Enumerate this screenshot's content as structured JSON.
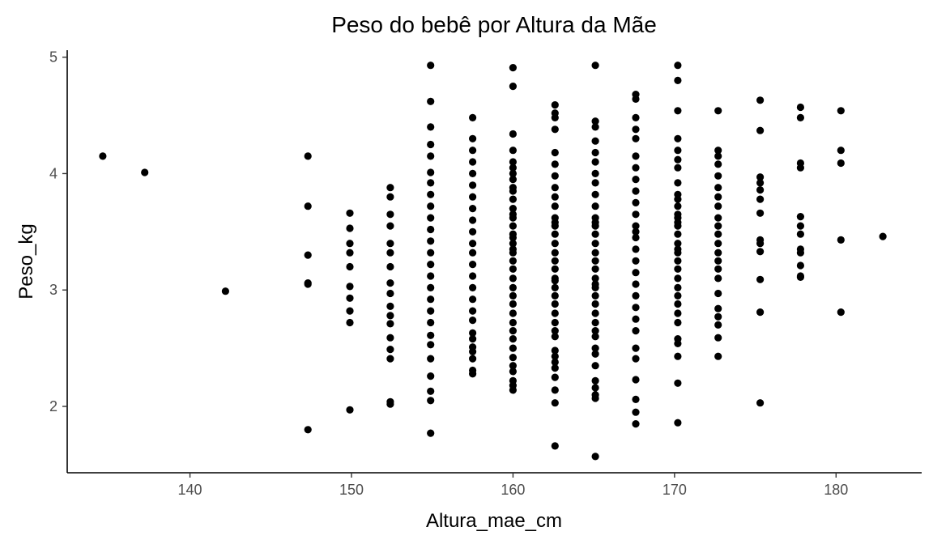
{
  "chart_data": {
    "type": "scatter",
    "title": "Peso do bebê por Altura da Mãe",
    "xlabel": "Altura_mae_cm",
    "ylabel": "Peso_kg",
    "xlim": [
      132.4,
      185.3
    ],
    "ylim": [
      1.43,
      5.06
    ],
    "xticks": [
      140,
      150,
      160,
      170,
      180
    ],
    "yticks": [
      2,
      3,
      4,
      5
    ],
    "grid": false,
    "point_color": "#000000",
    "x": [
      134.6,
      137.2,
      142.2,
      147.3,
      147.3,
      147.3,
      147.3,
      147.3,
      147.3,
      149.9,
      149.9,
      149.9,
      149.9,
      149.9,
      149.9,
      149.9,
      149.9,
      149.9,
      149.9,
      152.4,
      152.4,
      152.4,
      152.4,
      152.4,
      152.4,
      152.4,
      152.4,
      152.4,
      152.4,
      152.4,
      152.4,
      152.4,
      152.4,
      152.4,
      152.4,
      152.4,
      154.9,
      154.9,
      154.9,
      154.9,
      154.9,
      154.9,
      154.9,
      154.9,
      154.9,
      154.9,
      154.9,
      154.9,
      154.9,
      154.9,
      154.9,
      154.9,
      154.9,
      154.9,
      154.9,
      154.9,
      154.9,
      154.9,
      154.9,
      154.9,
      154.9,
      154.9,
      157.5,
      157.5,
      157.5,
      157.5,
      157.5,
      157.5,
      157.5,
      157.5,
      157.5,
      157.5,
      157.5,
      157.5,
      157.5,
      157.5,
      157.5,
      157.5,
      157.5,
      157.5,
      157.5,
      157.5,
      157.5,
      157.5,
      157.5,
      157.5,
      157.5,
      160.0,
      160.0,
      160.0,
      160.0,
      160.0,
      160.0,
      160.0,
      160.0,
      160.0,
      160.0,
      160.0,
      160.0,
      160.0,
      160.0,
      160.0,
      160.0,
      160.0,
      160.0,
      160.0,
      160.0,
      160.0,
      160.0,
      160.0,
      160.0,
      160.0,
      160.0,
      160.0,
      160.0,
      160.0,
      160.0,
      160.0,
      160.0,
      160.0,
      160.0,
      160.0,
      160.0,
      160.0,
      162.6,
      162.6,
      162.6,
      162.6,
      162.6,
      162.6,
      162.6,
      162.6,
      162.6,
      162.6,
      162.6,
      162.6,
      162.6,
      162.6,
      162.6,
      162.6,
      162.6,
      162.6,
      162.6,
      162.6,
      162.6,
      162.6,
      162.6,
      162.6,
      162.6,
      162.6,
      162.6,
      162.6,
      162.6,
      162.6,
      162.6,
      162.6,
      162.6,
      162.6,
      162.6,
      165.1,
      165.1,
      165.1,
      165.1,
      165.1,
      165.1,
      165.1,
      165.1,
      165.1,
      165.1,
      165.1,
      165.1,
      165.1,
      165.1,
      165.1,
      165.1,
      165.1,
      165.1,
      165.1,
      165.1,
      165.1,
      165.1,
      165.1,
      165.1,
      165.1,
      165.1,
      165.1,
      165.1,
      165.1,
      165.1,
      165.1,
      165.1,
      165.1,
      165.1,
      165.1,
      167.6,
      167.6,
      167.6,
      167.6,
      167.6,
      167.6,
      167.6,
      167.6,
      167.6,
      167.6,
      167.6,
      167.6,
      167.6,
      167.6,
      167.6,
      167.6,
      167.6,
      167.6,
      167.6,
      167.6,
      167.6,
      167.6,
      167.6,
      167.6,
      167.6,
      167.6,
      167.6,
      167.6,
      170.2,
      170.2,
      170.2,
      170.2,
      170.2,
      170.2,
      170.2,
      170.2,
      170.2,
      170.2,
      170.2,
      170.2,
      170.2,
      170.2,
      170.2,
      170.2,
      170.2,
      170.2,
      170.2,
      170.2,
      170.2,
      170.2,
      170.2,
      170.2,
      170.2,
      170.2,
      170.2,
      170.2,
      170.2,
      170.2,
      170.2,
      170.2,
      172.7,
      172.7,
      172.7,
      172.7,
      172.7,
      172.7,
      172.7,
      172.7,
      172.7,
      172.7,
      172.7,
      172.7,
      172.7,
      172.7,
      172.7,
      172.7,
      172.7,
      172.7,
      172.7,
      172.7,
      172.7,
      172.7,
      175.3,
      175.3,
      175.3,
      175.3,
      175.3,
      175.3,
      175.3,
      175.3,
      175.3,
      175.3,
      175.3,
      175.3,
      175.3,
      177.8,
      177.8,
      177.8,
      177.8,
      177.8,
      177.8,
      177.8,
      177.8,
      177.8,
      177.8,
      177.8,
      177.8,
      180.3,
      180.3,
      180.3,
      180.3,
      180.3,
      182.9
    ],
    "y": [
      4.15,
      4.01,
      2.99,
      4.15,
      3.72,
      3.3,
      3.06,
      3.05,
      1.8,
      3.66,
      3.53,
      3.4,
      3.32,
      3.2,
      3.03,
      2.93,
      2.82,
      2.72,
      1.97,
      3.88,
      3.8,
      3.65,
      3.55,
      3.4,
      3.32,
      3.2,
      3.06,
      2.97,
      2.86,
      2.78,
      2.71,
      2.59,
      2.49,
      2.41,
      2.04,
      2.02,
      4.93,
      4.62,
      4.4,
      4.25,
      4.15,
      4.01,
      3.92,
      3.82,
      3.72,
      3.62,
      3.52,
      3.42,
      3.32,
      3.22,
      3.12,
      3.02,
      2.92,
      2.82,
      2.72,
      2.61,
      2.53,
      2.41,
      2.26,
      2.13,
      2.05,
      1.77,
      4.48,
      4.3,
      4.2,
      4.1,
      4.0,
      3.9,
      3.8,
      3.7,
      3.6,
      3.5,
      3.4,
      3.32,
      3.22,
      3.12,
      3.02,
      2.92,
      2.82,
      2.74,
      2.63,
      2.58,
      2.51,
      2.47,
      2.41,
      2.31,
      2.28,
      4.91,
      4.75,
      4.34,
      4.2,
      4.1,
      4.05,
      3.95,
      3.85,
      3.78,
      3.7,
      3.62,
      3.55,
      3.48,
      3.4,
      3.32,
      3.25,
      3.18,
      3.1,
      3.02,
      2.95,
      2.88,
      2.8,
      2.72,
      2.65,
      2.58,
      2.5,
      2.42,
      2.35,
      2.3,
      2.22,
      2.18,
      2.14,
      3.35,
      3.45,
      3.65,
      3.88,
      4.0,
      4.59,
      4.52,
      4.48,
      4.38,
      4.18,
      4.08,
      3.98,
      3.88,
      3.8,
      3.72,
      3.62,
      3.55,
      3.48,
      3.4,
      3.32,
      3.25,
      3.18,
      3.1,
      3.02,
      2.95,
      2.88,
      2.8,
      2.72,
      2.65,
      2.6,
      2.48,
      2.43,
      2.38,
      2.33,
      2.25,
      2.14,
      2.03,
      1.66,
      3.58,
      3.08,
      4.93,
      4.45,
      4.4,
      4.28,
      4.18,
      4.1,
      4.0,
      3.92,
      3.82,
      3.72,
      3.62,
      3.55,
      3.48,
      3.4,
      3.32,
      3.25,
      3.18,
      3.1,
      3.02,
      2.95,
      2.88,
      2.8,
      2.72,
      2.65,
      2.6,
      2.5,
      2.45,
      2.35,
      2.22,
      2.16,
      2.1,
      2.07,
      1.57,
      3.58,
      3.05,
      4.68,
      4.64,
      4.48,
      4.38,
      4.3,
      4.15,
      4.05,
      3.95,
      3.85,
      3.75,
      3.65,
      3.55,
      3.45,
      3.35,
      3.25,
      3.15,
      3.05,
      2.95,
      2.85,
      2.75,
      2.65,
      2.5,
      2.41,
      2.23,
      2.06,
      1.95,
      1.85,
      3.5,
      4.93,
      4.8,
      4.54,
      4.3,
      4.2,
      4.12,
      4.05,
      3.92,
      3.82,
      3.72,
      3.62,
      3.55,
      3.48,
      3.4,
      3.32,
      3.25,
      3.18,
      3.1,
      3.02,
      2.95,
      2.88,
      2.8,
      2.72,
      2.58,
      2.54,
      2.43,
      2.2,
      1.86,
      3.58,
      3.65,
      3.35,
      3.78,
      4.54,
      4.2,
      4.15,
      4.08,
      3.98,
      3.88,
      3.8,
      3.72,
      3.62,
      3.55,
      3.48,
      3.4,
      3.32,
      3.25,
      3.18,
      3.1,
      2.97,
      2.84,
      2.77,
      2.7,
      2.59,
      2.43,
      4.63,
      4.37,
      3.97,
      3.92,
      3.86,
      3.78,
      3.66,
      3.43,
      3.4,
      3.33,
      3.09,
      2.81,
      2.03,
      4.57,
      4.48,
      4.09,
      4.05,
      3.63,
      3.55,
      3.48,
      3.35,
      3.32,
      3.21,
      3.12,
      3.11,
      4.54,
      4.2,
      4.09,
      3.43,
      2.81,
      3.46
    ]
  }
}
